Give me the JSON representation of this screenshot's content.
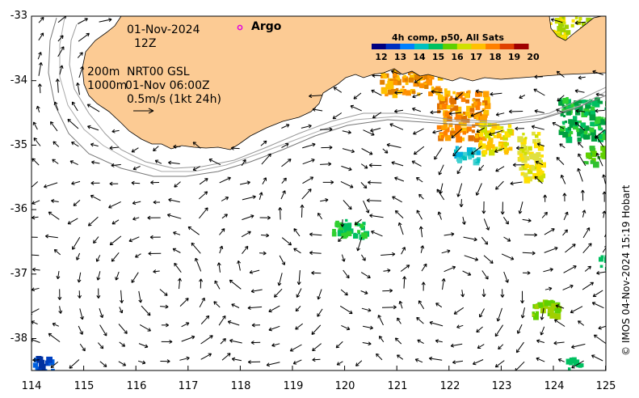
{
  "map": {
    "date": "01-Nov-2024",
    "hour": "12Z",
    "depth_lines": [
      "200m",
      "1000m"
    ],
    "product": "NRT00 GSL",
    "product_time": "01-Nov 06:00Z",
    "scale_label": "0.5m/s (1kt 24h)",
    "argo_label": "Argo",
    "colorbar_title": "4h comp, p50, All Sats",
    "colorbar_ticks": [
      "12",
      "13",
      "14",
      "15",
      "16",
      "17",
      "18",
      "19",
      "20"
    ],
    "colorbar_colors": [
      "#000080",
      "#0030c0",
      "#0080ff",
      "#00c0c0",
      "#00c060",
      "#60d000",
      "#d0e000",
      "#ffc000",
      "#ff8000",
      "#e04000",
      "#a00000"
    ],
    "land_color": "#fccb94",
    "lat_ticks": [
      "-33",
      "-34",
      "-35",
      "-36",
      "-37",
      "-38"
    ],
    "lon_ticks": [
      "114",
      "115",
      "116",
      "117",
      "118",
      "119",
      "120",
      "121",
      "122",
      "123",
      "124",
      "125"
    ],
    "credit": "© IMOS 04-Nov-2024 15:19 Hobart"
  }
}
